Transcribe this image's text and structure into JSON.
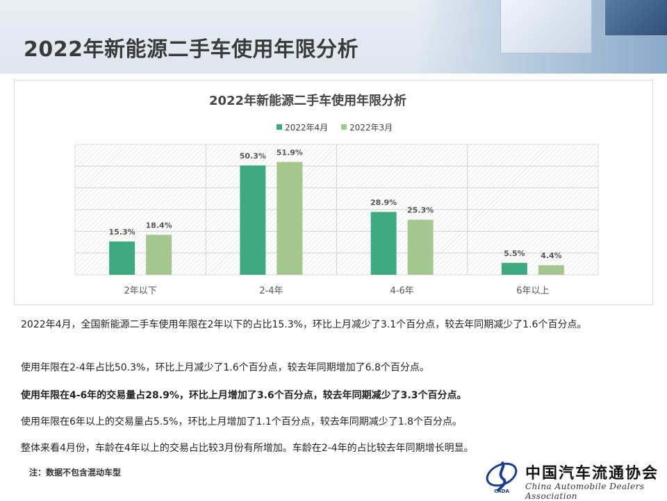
{
  "page": {
    "title": "2022年新能源二手车使用年限分析"
  },
  "chart_data": {
    "type": "bar",
    "title": "2022年新能源二手车使用年限分析",
    "categories": [
      "2年以下",
      "2-4年",
      "4-6年",
      "6年以上"
    ],
    "series": [
      {
        "name": "2022年4月",
        "color": "#3faa81",
        "values": [
          15.3,
          50.3,
          28.9,
          5.5
        ],
        "labels": [
          "15.3%",
          "50.3%",
          "28.9%",
          "5.5%"
        ]
      },
      {
        "name": "2022年3月",
        "color": "#a4c78f",
        "values": [
          18.4,
          51.9,
          25.3,
          4.4
        ],
        "labels": [
          "18.4%",
          "51.9%",
          "25.3%",
          "4.4%"
        ]
      }
    ],
    "ylim": [
      0,
      60
    ],
    "grid": true,
    "legend_position": "top"
  },
  "notes": [
    "2022年4月，全国新能源二手车使用年限在2年以下的占比15.3%，环比上月减少了3.1个百分点，较去年同期减少了1.6个百分点。",
    "使用年限在2-4年占比50.3%，环比上月减少了1.6个百分点，较去年同期增加了6.8个百分点。",
    "使用年限在4-6年的交易量占28.9%，环比上月增加了3.6个百分点，较去年同期减少了3.3个百分点。",
    "使用年限在6年以上的交易量占5.5%，环比上月增加了1.1个百分点，较去年同期减少了1.8个百分点。",
    "整体来看4月份，车龄在4年以上的交易占比较3月份有所增加。车龄在2-4年的占比较去年同期增长明显。"
  ],
  "footnote": "注：数据不包含混动车型",
  "logo": {
    "name_cn": "中国汽车流通协会",
    "name_en": "China Automobile Dealers Association",
    "mark_text": "CADA"
  }
}
